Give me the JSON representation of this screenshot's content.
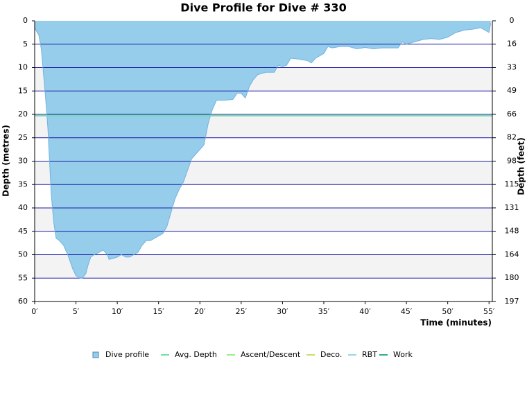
{
  "chart_data": {
    "type": "area",
    "title": "Dive Profile for Dive # 330",
    "xlabel": "Time (minutes)",
    "ylabel": "Depth (metres)",
    "y2label": "Depth (feet)",
    "y_inverted": true,
    "xlim": [
      0,
      55.4
    ],
    "ylim": [
      0,
      60
    ],
    "y2lim": [
      0,
      196.85
    ],
    "xticks": [
      {
        "value": 0,
        "label": "0′"
      },
      {
        "value": 5,
        "label": "5′"
      },
      {
        "value": 10,
        "label": "10′"
      },
      {
        "value": 15,
        "label": "15′"
      },
      {
        "value": 20,
        "label": "20′"
      },
      {
        "value": 25,
        "label": "25′"
      },
      {
        "value": 30,
        "label": "30′"
      },
      {
        "value": 35,
        "label": "35′"
      },
      {
        "value": 40,
        "label": "40′"
      },
      {
        "value": 45,
        "label": "45′"
      },
      {
        "value": 50,
        "label": "50′"
      },
      {
        "value": 55,
        "label": "55′"
      }
    ],
    "yticks": [
      0,
      5,
      10,
      15,
      20,
      25,
      30,
      35,
      40,
      45,
      50,
      55,
      60
    ],
    "y2ticks": [
      0,
      {
        "value": 16.4,
        "label": "16"
      },
      {
        "value": 32.8,
        "label": "33"
      },
      {
        "value": 49.2,
        "label": "49"
      },
      {
        "value": 65.6,
        "label": "66"
      },
      {
        "value": 82.0,
        "label": "82"
      },
      {
        "value": 98.4,
        "label": "98"
      },
      {
        "value": 114.8,
        "label": "115"
      },
      {
        "value": 131.2,
        "label": "131"
      },
      {
        "value": 147.6,
        "label": "148"
      },
      {
        "value": 164.0,
        "label": "164"
      },
      {
        "value": 180.4,
        "label": "180"
      },
      {
        "value": 196.85,
        "label": "197"
      }
    ],
    "grid": true,
    "series": [
      {
        "name": "Dive profile",
        "color": "#95cdeb",
        "x": [
          0,
          0.3,
          0.5,
          0.8,
          1.0,
          1.3,
          1.6,
          1.8,
          2.0,
          2.3,
          2.6,
          3.0,
          3.5,
          4.0,
          4.3,
          4.6,
          5.0,
          5.5,
          5.8,
          6.2,
          6.5,
          6.8,
          7.2,
          7.8,
          8.3,
          8.8,
          9.0,
          9.5,
          10.0,
          10.5,
          11.0,
          11.5,
          12.0,
          12.5,
          13.0,
          13.5,
          14.0,
          14.5,
          15.0,
          15.5,
          16.0,
          16.5,
          17.0,
          17.5,
          18.0,
          18.5,
          19.0,
          19.5,
          20.0,
          20.5,
          21.0,
          21.5,
          22.0,
          23.0,
          24.0,
          24.5,
          25.0,
          25.5,
          26.0,
          26.5,
          27.0,
          28.0,
          29.0,
          29.5,
          30.0,
          30.5,
          31.0,
          32.0,
          33.0,
          33.5,
          34.0,
          35.0,
          35.5,
          36.0,
          37.0,
          38.0,
          39.0,
          40.0,
          41.0,
          42.0,
          43.0,
          44.0,
          44.5,
          45.0,
          46.0,
          47.0,
          48.0,
          49.0,
          50.0,
          51.0,
          52.0,
          53.0,
          54.0,
          54.5,
          55.0,
          55.2
        ],
        "values": [
          1.5,
          2.5,
          3,
          6,
          10,
          16,
          23,
          30,
          37,
          43,
          46.5,
          47,
          48,
          50,
          51.5,
          53,
          54.5,
          55,
          55,
          54,
          52,
          50.5,
          50,
          49.5,
          49,
          50,
          51,
          50.8,
          50.5,
          50,
          50.5,
          50.5,
          50,
          49.5,
          48,
          47,
          47,
          46.5,
          46,
          45.5,
          44,
          41,
          38,
          36,
          34.5,
          32,
          29.5,
          28.5,
          27.5,
          26.5,
          22,
          19,
          17,
          17,
          16.8,
          15.5,
          15.5,
          16.5,
          14,
          12.5,
          11.5,
          11,
          11,
          9.5,
          9.8,
          9.5,
          8,
          8.2,
          8.5,
          9,
          8,
          7,
          5.5,
          5.8,
          5.5,
          5.5,
          6,
          5.7,
          6,
          5.8,
          5.8,
          5.8,
          4.5,
          5,
          4.5,
          4,
          3.8,
          4,
          3.5,
          2.5,
          2,
          1.8,
          1.5,
          2,
          2.5,
          0.5
        ]
      },
      {
        "name": "Avg. Depth",
        "color": "#6fe0a8",
        "value": 20.3
      },
      {
        "name": "Ascent/Descent",
        "color": "#99ee88"
      },
      {
        "name": "Deco.",
        "color": "#ccdd66"
      },
      {
        "name": "RBT",
        "color": "#99d4ee"
      },
      {
        "name": "Work",
        "color": "#33aa88"
      }
    ]
  }
}
